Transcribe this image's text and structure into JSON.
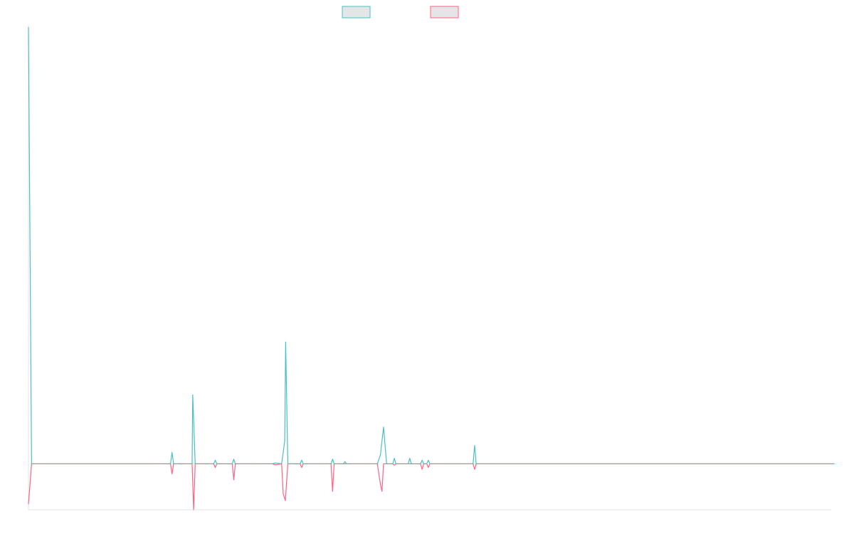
{
  "chart_data": {
    "type": "line",
    "title": "",
    "xlabel": "",
    "ylabel": "",
    "legend_position": "top-center",
    "grid": false,
    "x_count": 261,
    "ylim": [
      -1,
      9.55
    ],
    "series": [
      {
        "color": "#4bc0c0",
        "fill": "rgba(201,203,207,0.5)",
        "points": [
          [
            0,
            9.5
          ],
          [
            1,
            0
          ],
          [
            46,
            0
          ],
          [
            46.5,
            0.25
          ],
          [
            47,
            0
          ],
          [
            53,
            0
          ],
          [
            53.2,
            1.5
          ],
          [
            54,
            0
          ],
          [
            60,
            0
          ],
          [
            60.5,
            0.08
          ],
          [
            61,
            0
          ],
          [
            66,
            0
          ],
          [
            66.5,
            0.1
          ],
          [
            67,
            0
          ],
          [
            79,
            0
          ],
          [
            80,
            0.02
          ],
          [
            82,
            0
          ],
          [
            83,
            0.5
          ],
          [
            83.3,
            2.65
          ],
          [
            84,
            0
          ],
          [
            88,
            0
          ],
          [
            88.5,
            0.08
          ],
          [
            89,
            0
          ],
          [
            98,
            0
          ],
          [
            98.5,
            0.1
          ],
          [
            99,
            0
          ],
          [
            102,
            0
          ],
          [
            102.5,
            0.05
          ],
          [
            103,
            0
          ],
          [
            113,
            0
          ],
          [
            114,
            0.2
          ],
          [
            115,
            0.8
          ],
          [
            116,
            0
          ],
          [
            118,
            0
          ],
          [
            118.5,
            0.12
          ],
          [
            119,
            0
          ],
          [
            123,
            0
          ],
          [
            123.5,
            0.12
          ],
          [
            124,
            0
          ],
          [
            127,
            0
          ],
          [
            127.5,
            0.08
          ],
          [
            128,
            0
          ],
          [
            129,
            0
          ],
          [
            129.5,
            0.08
          ],
          [
            130,
            0
          ],
          [
            144,
            0
          ],
          [
            144.5,
            0.4
          ],
          [
            145,
            0
          ],
          [
            261,
            0
          ]
        ]
      },
      {
        "color": "#ff6384",
        "fill": "rgba(201,203,207,0.5)",
        "points": [
          [
            0,
            -0.88
          ],
          [
            1,
            0
          ],
          [
            46,
            0
          ],
          [
            46.5,
            -0.22
          ],
          [
            47,
            0
          ],
          [
            53,
            0
          ],
          [
            53.5,
            -1.0
          ],
          [
            54,
            0
          ],
          [
            60,
            0
          ],
          [
            60.5,
            -0.08
          ],
          [
            61,
            0
          ],
          [
            66,
            0
          ],
          [
            66.5,
            -0.35
          ],
          [
            67,
            0
          ],
          [
            79,
            0
          ],
          [
            80,
            -0.02
          ],
          [
            82,
            0
          ],
          [
            82.5,
            -0.65
          ],
          [
            83.2,
            -0.8
          ],
          [
            84,
            0
          ],
          [
            88,
            0
          ],
          [
            88.5,
            -0.08
          ],
          [
            89,
            0
          ],
          [
            98,
            0
          ],
          [
            98.5,
            -0.6
          ],
          [
            99,
            0
          ],
          [
            113,
            0
          ],
          [
            114,
            -0.45
          ],
          [
            114.5,
            -0.6
          ],
          [
            115,
            0
          ],
          [
            118,
            0
          ],
          [
            118.5,
            -0.03
          ],
          [
            119,
            0
          ],
          [
            127,
            0
          ],
          [
            127.5,
            -0.12
          ],
          [
            128,
            0
          ],
          [
            129,
            0
          ],
          [
            129.5,
            -0.08
          ],
          [
            130,
            0
          ],
          [
            144,
            0
          ],
          [
            144.5,
            -0.12
          ],
          [
            145,
            0
          ],
          [
            261,
            0
          ]
        ]
      }
    ]
  }
}
